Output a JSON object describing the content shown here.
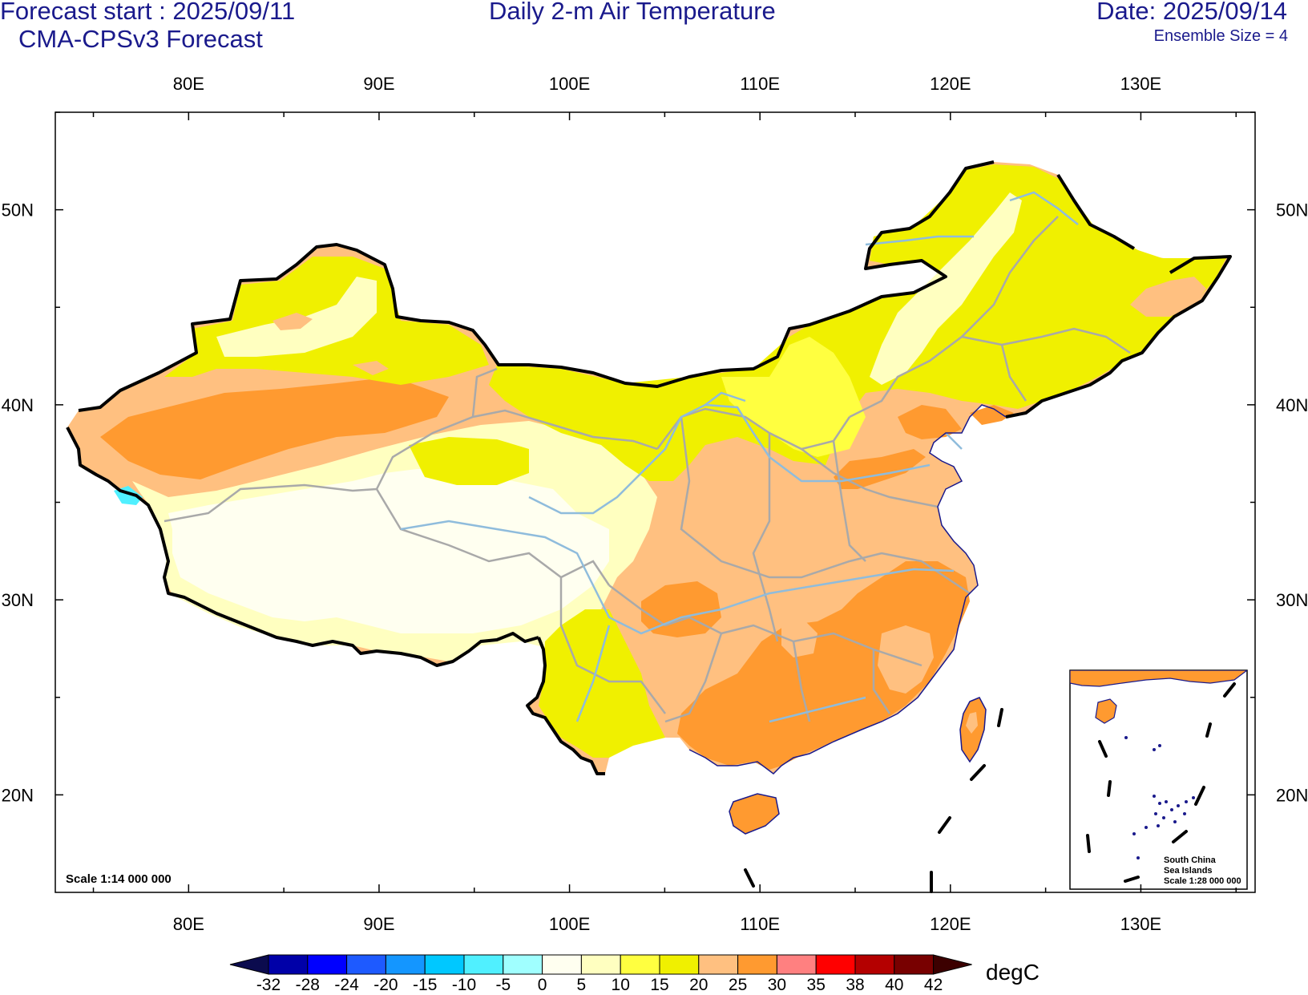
{
  "header": {
    "forecast_start": "Forecast start : 2025/09/11",
    "model": "CMA-CPSv3 Forecast",
    "title": "Daily 2-m Air Temperature",
    "date": "Date: 2025/09/14",
    "ensemble": "Ensemble Size = 4"
  },
  "map": {
    "lon_labels": [
      "80E",
      "90E",
      "100E",
      "110E",
      "120E",
      "130E"
    ],
    "lat_labels": [
      "50N",
      "40N",
      "30N",
      "20N"
    ],
    "scale_main": "Scale 1:14 000 000",
    "inset": {
      "line1": "South China",
      "line2": "Sea Islands",
      "line3": "Scale 1:28 000 000"
    },
    "lon_range": [
      73,
      136
    ],
    "lat_range": [
      15,
      55
    ]
  },
  "colorbar": {
    "unit": "degC",
    "levels": [
      "-32",
      "-28",
      "-24",
      "-20",
      "-15",
      "-10",
      "-5",
      "0",
      "5",
      "10",
      "15",
      "20",
      "25",
      "30",
      "35",
      "38",
      "40",
      "42"
    ],
    "colors": [
      "#0b0b4e",
      "#0000a8",
      "#0000ff",
      "#1e5aff",
      "#1496ff",
      "#00c8ff",
      "#50f0ff",
      "#a0ffff",
      "#fffff0",
      "#ffffc0",
      "#ffff40",
      "#f0f000",
      "#ffc080",
      "#ff9a30",
      "#ff8080",
      "#ff0000",
      "#b40000",
      "#780000",
      "#3c0000"
    ]
  },
  "colors": {
    "title_blue": "#1a1a8c",
    "border": "#000000",
    "rivers": "#8fbcdc",
    "provinces": "#a9a9a9"
  }
}
